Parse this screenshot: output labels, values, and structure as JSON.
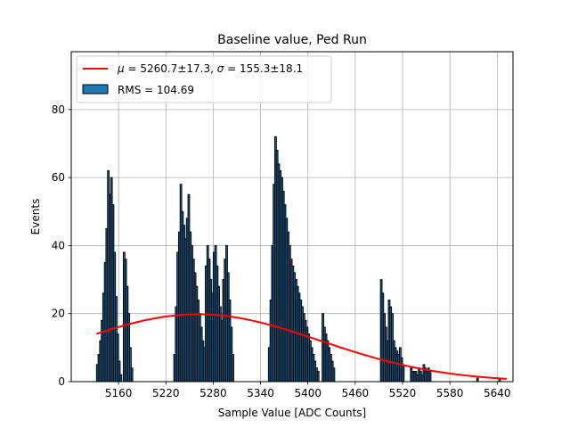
{
  "chart_data": {
    "type": "bar",
    "title": "Baseline value, Ped Run",
    "xlabel": "Sample Value [ADC Counts]",
    "ylabel": "Events",
    "xlim": [
      5100,
      5660
    ],
    "ylim": [
      0,
      97
    ],
    "xticks": [
      5160,
      5220,
      5280,
      5340,
      5400,
      5460,
      5520,
      5580,
      5640
    ],
    "yticks": [
      0,
      20,
      40,
      60,
      80
    ],
    "grid": true,
    "legend_position": "top-left",
    "histogram": {
      "name": "RMS = 104.69",
      "bin_width": 2,
      "color": "#1f77b4",
      "edgecolor": "#000000",
      "bins": [
        [
          5132,
          5
        ],
        [
          5134,
          8
        ],
        [
          5136,
          12
        ],
        [
          5138,
          18
        ],
        [
          5140,
          26
        ],
        [
          5142,
          35
        ],
        [
          5144,
          45
        ],
        [
          5146,
          62
        ],
        [
          5148,
          55
        ],
        [
          5150,
          60
        ],
        [
          5152,
          52
        ],
        [
          5154,
          38
        ],
        [
          5156,
          25
        ],
        [
          5158,
          14
        ],
        [
          5160,
          6
        ],
        [
          5162,
          2
        ],
        [
          5166,
          38
        ],
        [
          5168,
          36
        ],
        [
          5170,
          28
        ],
        [
          5172,
          20
        ],
        [
          5174,
          10
        ],
        [
          5176,
          4
        ],
        [
          5230,
          8
        ],
        [
          5232,
          22
        ],
        [
          5234,
          38
        ],
        [
          5236,
          44
        ],
        [
          5238,
          58
        ],
        [
          5240,
          50
        ],
        [
          5242,
          46
        ],
        [
          5244,
          42
        ],
        [
          5246,
          48
        ],
        [
          5248,
          55
        ],
        [
          5250,
          44
        ],
        [
          5252,
          40
        ],
        [
          5254,
          36
        ],
        [
          5256,
          32
        ],
        [
          5258,
          28
        ],
        [
          5260,
          24
        ],
        [
          5262,
          20
        ],
        [
          5264,
          16
        ],
        [
          5266,
          12
        ],
        [
          5268,
          10
        ],
        [
          5270,
          34
        ],
        [
          5272,
          40
        ],
        [
          5274,
          36
        ],
        [
          5276,
          30
        ],
        [
          5278,
          26
        ],
        [
          5280,
          38
        ],
        [
          5282,
          40
        ],
        [
          5284,
          34
        ],
        [
          5286,
          28
        ],
        [
          5288,
          22
        ],
        [
          5290,
          18
        ],
        [
          5292,
          30
        ],
        [
          5294,
          36
        ],
        [
          5296,
          40
        ],
        [
          5298,
          32
        ],
        [
          5300,
          24
        ],
        [
          5302,
          16
        ],
        [
          5304,
          8
        ],
        [
          5350,
          10
        ],
        [
          5352,
          24
        ],
        [
          5354,
          40
        ],
        [
          5356,
          58
        ],
        [
          5358,
          72
        ],
        [
          5360,
          68
        ],
        [
          5362,
          64
        ],
        [
          5364,
          62
        ],
        [
          5366,
          60
        ],
        [
          5368,
          56
        ],
        [
          5370,
          52
        ],
        [
          5372,
          48
        ],
        [
          5374,
          44
        ],
        [
          5376,
          40
        ],
        [
          5378,
          36
        ],
        [
          5380,
          34
        ],
        [
          5382,
          32
        ],
        [
          5384,
          30
        ],
        [
          5386,
          28
        ],
        [
          5388,
          26
        ],
        [
          5390,
          24
        ],
        [
          5392,
          22
        ],
        [
          5394,
          20
        ],
        [
          5396,
          18
        ],
        [
          5398,
          16
        ],
        [
          5400,
          14
        ],
        [
          5402,
          12
        ],
        [
          5404,
          10
        ],
        [
          5406,
          8
        ],
        [
          5408,
          6
        ],
        [
          5410,
          4
        ],
        [
          5412,
          3
        ],
        [
          5418,
          20
        ],
        [
          5420,
          16
        ],
        [
          5422,
          14
        ],
        [
          5424,
          12
        ],
        [
          5426,
          10
        ],
        [
          5428,
          8
        ],
        [
          5430,
          6
        ],
        [
          5432,
          4
        ],
        [
          5492,
          30
        ],
        [
          5494,
          26
        ],
        [
          5496,
          20
        ],
        [
          5498,
          16
        ],
        [
          5500,
          12
        ],
        [
          5502,
          24
        ],
        [
          5504,
          22
        ],
        [
          5506,
          20
        ],
        [
          5508,
          12
        ],
        [
          5510,
          10
        ],
        [
          5512,
          9
        ],
        [
          5514,
          8
        ],
        [
          5516,
          10
        ],
        [
          5518,
          7
        ],
        [
          5520,
          5
        ],
        [
          5530,
          4
        ],
        [
          5532,
          3
        ],
        [
          5534,
          3
        ],
        [
          5536,
          3
        ],
        [
          5538,
          2
        ],
        [
          5540,
          4
        ],
        [
          5542,
          3
        ],
        [
          5544,
          2
        ],
        [
          5546,
          5
        ],
        [
          5548,
          4
        ],
        [
          5550,
          3
        ],
        [
          5552,
          4
        ],
        [
          5554,
          3
        ],
        [
          5614,
          1
        ],
        [
          5642,
          1
        ]
      ]
    },
    "fit": {
      "name": "$\\mu = 5260.7\\pm17.3$, $\\sigma = 155.3\\pm18.1$",
      "type": "gaussian",
      "amplitude": 19.8,
      "mu": 5260.7,
      "sigma": 155.3,
      "x_range": [
        5132,
        5652
      ],
      "color": "#ff0000"
    }
  }
}
